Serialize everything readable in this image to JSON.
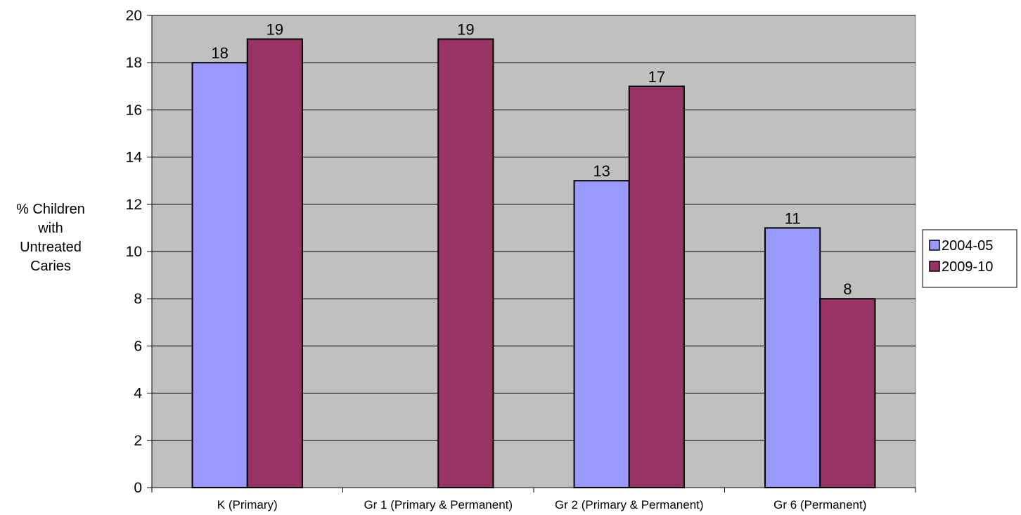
{
  "chart_data": {
    "type": "bar",
    "categories": [
      "K (Primary)",
      "Gr 1 (Primary & Permanent)",
      "Gr 2 (Primary & Permanent)",
      "Gr 6 (Permanent)"
    ],
    "series": [
      {
        "name": "2004-05",
        "values": [
          18,
          null,
          13,
          11
        ],
        "color": "#9999ff"
      },
      {
        "name": "2009-10",
        "values": [
          19,
          19,
          17,
          8
        ],
        "color": "#993366"
      }
    ],
    "ylabel": "% Children with Untreated Caries",
    "ylabel_lines": [
      "% Children",
      "with",
      "Untreated",
      "Caries"
    ],
    "ylim": [
      0,
      20
    ],
    "yticks": [
      0,
      2,
      4,
      6,
      8,
      10,
      12,
      14,
      16,
      18,
      20
    ],
    "grid": true,
    "plot_background": "#c0c0c0",
    "legend_position": "right"
  }
}
